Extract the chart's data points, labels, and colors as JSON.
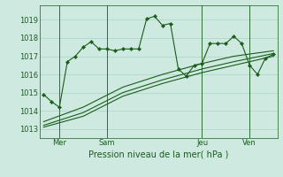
{
  "background_color": "#ceeae0",
  "grid_color": "#aad4c8",
  "line_color": "#1a5c1a",
  "title": "Pression niveau de la mer( hPa )",
  "ylabel_values": [
    1013,
    1014,
    1015,
    1016,
    1017,
    1018,
    1019
  ],
  "ylim": [
    1012.5,
    1019.8
  ],
  "day_labels": [
    "Mer",
    "Sam",
    "Jeu",
    "Ven"
  ],
  "day_positions": [
    2,
    8,
    20,
    26
  ],
  "vline_positions": [
    2,
    8,
    20,
    26
  ],
  "series1_x": [
    0,
    1,
    2,
    3,
    4,
    5,
    6,
    7,
    8,
    9,
    10,
    11,
    12,
    13,
    14,
    15,
    16,
    17,
    18,
    19,
    20,
    21,
    22,
    23,
    24,
    25,
    26,
    27,
    28,
    29
  ],
  "series1_y": [
    1014.9,
    1014.5,
    1014.2,
    1016.7,
    1017.0,
    1017.5,
    1017.8,
    1017.4,
    1017.4,
    1017.3,
    1017.4,
    1017.4,
    1017.4,
    1019.05,
    1019.2,
    1018.7,
    1018.8,
    1016.3,
    1015.9,
    1016.5,
    1016.6,
    1017.7,
    1017.7,
    1017.7,
    1018.1,
    1017.7,
    1016.5,
    1016.0,
    1016.9,
    1017.1
  ],
  "series2_x": [
    0,
    5,
    10,
    15,
    20,
    24,
    29
  ],
  "series2_y": [
    1013.1,
    1013.7,
    1014.8,
    1015.5,
    1016.1,
    1016.5,
    1017.0
  ],
  "series3_x": [
    0,
    5,
    10,
    15,
    20,
    24,
    29
  ],
  "series3_y": [
    1013.2,
    1013.9,
    1015.0,
    1015.7,
    1016.3,
    1016.7,
    1017.15
  ],
  "series4_x": [
    0,
    5,
    10,
    15,
    20,
    24,
    29
  ],
  "series4_y": [
    1013.4,
    1014.2,
    1015.3,
    1016.0,
    1016.6,
    1017.0,
    1017.3
  ],
  "xlim": [
    -0.5,
    29.5
  ]
}
